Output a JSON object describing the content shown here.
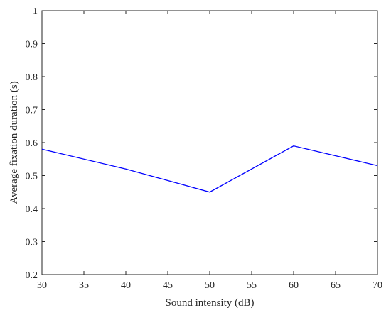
{
  "chart_data": {
    "type": "line",
    "xlabel": "Sound intensity (dB)",
    "ylabel": "Average fixation duration (s)",
    "xlim": [
      30,
      70
    ],
    "ylim": [
      0.2,
      1
    ],
    "x_ticks": [
      "30",
      "35",
      "40",
      "45",
      "50",
      "55",
      "60",
      "65",
      "70"
    ],
    "y_ticks": [
      "0.2",
      "0.3",
      "0.4",
      "0.5",
      "0.6",
      "0.7",
      "0.8",
      "0.9",
      "1"
    ],
    "grid": false,
    "series": [
      {
        "color": "#0000ff",
        "x": [
          30,
          40,
          50,
          60,
          70
        ],
        "values": [
          0.58,
          0.52,
          0.45,
          0.59,
          0.53
        ]
      }
    ]
  }
}
